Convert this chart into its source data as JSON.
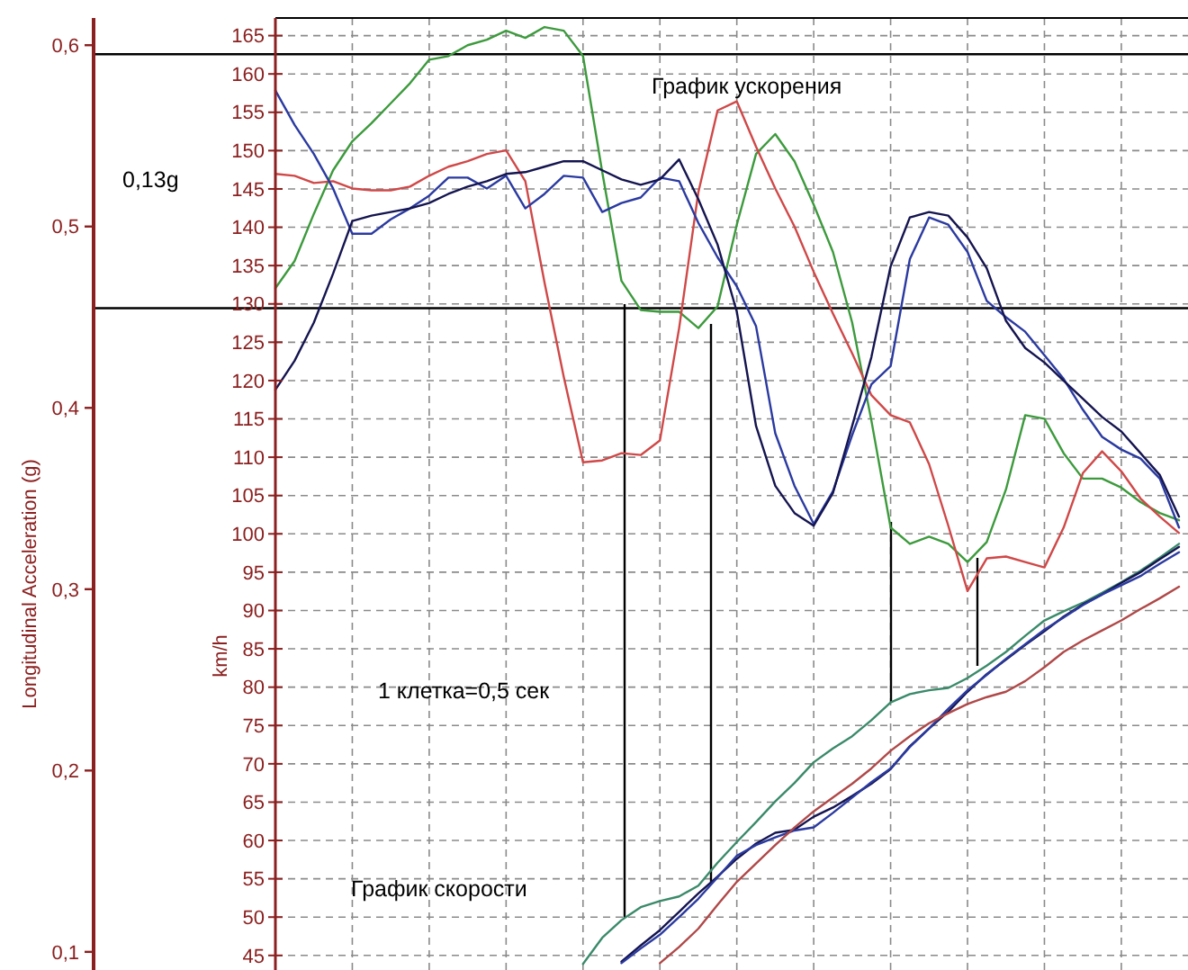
{
  "chart_data": {
    "type": "line",
    "ylabel": "Longitudinal Acceleration (g)",
    "y2label": "km/h",
    "annotations": [
      "График ускорения",
      "0,13g",
      "1 клетка=0,5 сек",
      "График скорости"
    ],
    "categories": [
      null,
      null,
      null,
      null,
      null,
      null,
      null,
      null,
      null,
      null,
      null,
      null,
      null,
      null,
      null,
      null,
      null,
      null,
      null,
      null,
      null,
      null,
      null,
      null,
      null,
      null,
      null,
      null,
      null,
      null,
      null,
      null,
      null,
      null,
      null,
      null,
      null,
      null,
      null,
      null,
      null,
      null,
      null,
      null,
      null,
      null,
      null,
      null
    ],
    "ylim": [
      0.09,
      0.615
    ],
    "yticks": [
      {
        "value": 0.1,
        "label": "0,1"
      },
      {
        "value": 0.2,
        "label": "0,2"
      },
      {
        "value": 0.3,
        "label": "0,3"
      },
      {
        "value": 0.4,
        "label": "0,4"
      },
      {
        "value": 0.5,
        "label": "0,5"
      },
      {
        "value": 0.6,
        "label": "0,6"
      }
    ],
    "y2lim": [
      43.1,
      167.3
    ],
    "y2ticks": [
      45,
      50,
      55,
      60,
      65,
      70,
      75,
      80,
      85,
      90,
      95,
      100,
      105,
      110,
      115,
      120,
      125,
      130,
      135,
      140,
      145,
      150,
      155,
      160,
      165
    ],
    "grid": true,
    "line_style": "solid",
    "marker": "none",
    "ref_lines": [
      {
        "axis": "y",
        "value": 0.595,
        "color": "#000000"
      },
      {
        "axis": "y",
        "value": 0.455,
        "color": "#000000"
      }
    ],
    "series": [
      {
        "color": "#3c9a3c",
        "values": [
          0.466,
          0.481,
          0.507,
          0.531,
          0.547,
          0.557,
          0.568,
          0.579,
          0.592,
          0.594,
          0.6,
          0.603,
          0.608,
          0.604,
          0.61,
          0.608,
          0.594,
          0.53,
          0.47,
          0.454,
          0.453,
          0.453,
          0.444,
          0.456,
          0.501,
          0.54,
          0.551,
          0.536,
          0.512,
          0.486,
          0.447,
          0.393,
          0.334,
          0.325,
          0.329,
          0.325,
          0.315,
          0.326,
          0.355,
          0.396,
          0.394,
          0.375,
          0.361,
          0.361,
          0.356,
          0.348,
          0.342,
          0.338
        ]
      },
      {
        "color": "#d04848",
        "values": [
          0.529,
          0.528,
          0.524,
          0.525,
          0.521,
          0.52,
          0.52,
          0.522,
          0.528,
          0.533,
          0.536,
          0.54,
          0.542,
          0.525,
          0.469,
          0.417,
          0.37,
          0.371,
          0.375,
          0.374,
          0.382,
          0.444,
          0.519,
          0.564,
          0.569,
          0.544,
          0.521,
          0.5,
          0.475,
          0.452,
          0.43,
          0.407,
          0.396,
          0.392,
          0.369,
          0.335,
          0.299,
          0.317,
          0.318,
          0.315,
          0.312,
          0.334,
          0.364,
          0.376,
          0.365,
          0.35,
          0.34,
          0.331
        ]
      },
      {
        "color": "#2a3aa0",
        "values": [
          0.575,
          0.556,
          0.54,
          0.521,
          0.496,
          0.496,
          0.504,
          0.51,
          0.517,
          0.527,
          0.527,
          0.521,
          0.528,
          0.51,
          0.518,
          0.528,
          0.527,
          0.508,
          0.513,
          0.516,
          0.527,
          0.525,
          0.502,
          0.483,
          0.467,
          0.445,
          0.386,
          0.357,
          0.336,
          0.354,
          0.385,
          0.413,
          0.423,
          0.482,
          0.505,
          0.501,
          0.486,
          0.459,
          0.45,
          0.442,
          0.429,
          0.416,
          0.399,
          0.384,
          0.377,
          0.372,
          0.361,
          0.334
        ]
      },
      {
        "color": "#141450",
        "values": [
          0.41,
          0.426,
          0.447,
          0.474,
          0.503,
          0.506,
          0.508,
          0.51,
          0.513,
          0.518,
          0.522,
          0.525,
          0.529,
          0.53,
          0.533,
          0.536,
          0.536,
          0.531,
          0.526,
          0.523,
          0.526,
          0.537,
          0.515,
          0.49,
          0.453,
          0.39,
          0.357,
          0.342,
          0.335,
          0.353,
          0.39,
          0.428,
          0.478,
          0.505,
          0.508,
          0.506,
          0.494,
          0.477,
          0.448,
          0.433,
          0.425,
          0.415,
          0.405,
          0.395,
          0.387,
          0.375,
          0.363,
          0.34
        ]
      },
      {
        "axis": "y2",
        "color": "#3a8a6a",
        "values": [
          null,
          null,
          null,
          null,
          null,
          null,
          null,
          null,
          null,
          null,
          null,
          null,
          null,
          null,
          null,
          null,
          43.9,
          47.3,
          49.6,
          51.3,
          52.1,
          52.7,
          54.1,
          57.1,
          59.8,
          62.4,
          65.1,
          67.5,
          70.2,
          72.0,
          73.6,
          75.7,
          78.0,
          79.1,
          79.6,
          79.9,
          81.2,
          82.8,
          84.6,
          86.7,
          88.7,
          89.9,
          91.0,
          92.3,
          93.7,
          95.2,
          96.9,
          98.7
        ]
      },
      {
        "axis": "y2",
        "color": "#141450",
        "values": [
          null,
          null,
          null,
          null,
          null,
          null,
          null,
          null,
          null,
          null,
          null,
          null,
          null,
          null,
          null,
          null,
          null,
          null,
          44.2,
          46.3,
          48.3,
          50.7,
          53.1,
          55.3,
          57.6,
          59.6,
          61.0,
          61.4,
          63.1,
          64.3,
          65.8,
          67.4,
          69.3,
          72.3,
          74.6,
          76.8,
          79.4,
          81.7,
          83.6,
          85.5,
          87.3,
          89.2,
          90.8,
          92.1,
          93.6,
          95.0,
          96.7,
          98.3
        ]
      },
      {
        "axis": "y2",
        "color": "#2a3aa0",
        "values": [
          null,
          null,
          null,
          null,
          null,
          null,
          null,
          null,
          null,
          null,
          null,
          null,
          null,
          null,
          null,
          null,
          null,
          null,
          44.0,
          45.9,
          47.7,
          50.0,
          52.4,
          55.2,
          58.0,
          59.4,
          60.4,
          61.3,
          61.7,
          63.6,
          65.6,
          67.6,
          69.4,
          72.2,
          74.6,
          77.2,
          79.6,
          81.6,
          83.7,
          85.6,
          87.5,
          89.1,
          90.7,
          92.1,
          93.3,
          94.5,
          96.1,
          97.6
        ]
      },
      {
        "axis": "y2",
        "color": "#b04848",
        "values": [
          null,
          null,
          null,
          null,
          null,
          null,
          null,
          null,
          null,
          null,
          null,
          null,
          null,
          null,
          null,
          null,
          null,
          null,
          null,
          null,
          44.0,
          46.1,
          48.5,
          51.6,
          54.6,
          57.0,
          59.4,
          61.7,
          63.8,
          65.6,
          67.4,
          69.4,
          71.7,
          73.6,
          75.3,
          76.6,
          77.8,
          78.7,
          79.4,
          80.8,
          82.6,
          84.6,
          86.1,
          87.4,
          88.7,
          90.2,
          91.6,
          93.1
        ]
      }
    ]
  }
}
